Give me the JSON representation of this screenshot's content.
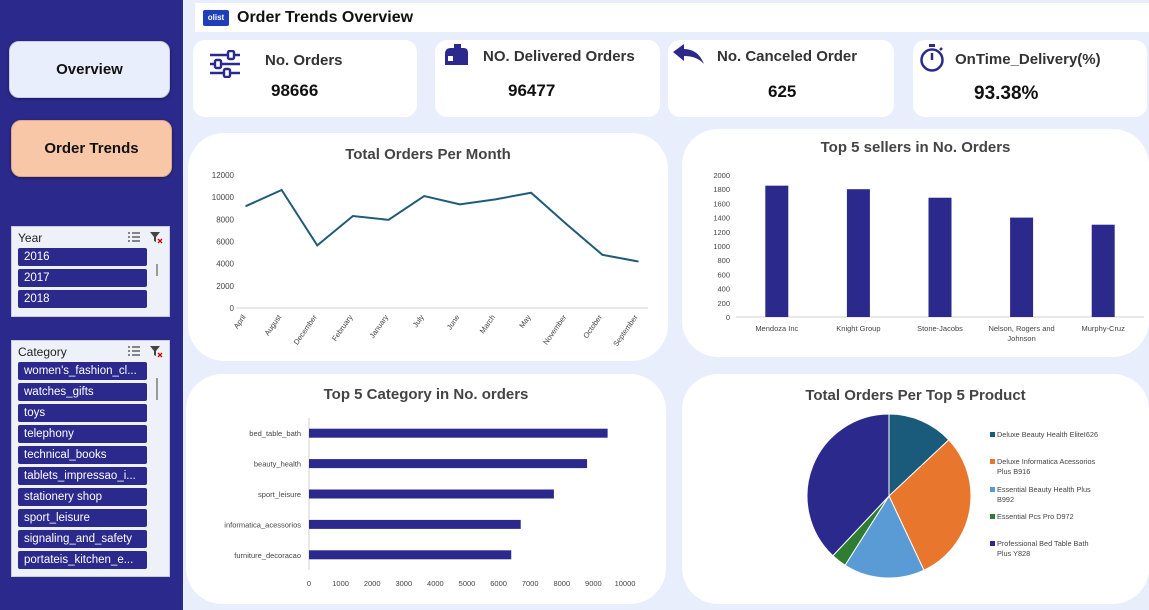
{
  "header": {
    "logo_text": "olist",
    "title": "Order Trends Overview"
  },
  "nav": {
    "overview": "Overview",
    "order_trends": "Order Trends"
  },
  "slicers": {
    "year": {
      "title": "Year",
      "items": [
        "2016",
        "2017",
        "2018"
      ]
    },
    "category": {
      "title": "Category",
      "items": [
        "women's_fashion_cl...",
        "watches_gifts",
        "toys",
        "telephony",
        "technical_books",
        "tablets_impressao_i...",
        "stationery shop",
        "sport_leisure",
        "signaling_and_safety",
        "portateis_kitchen_e..."
      ]
    }
  },
  "kpis": {
    "orders": {
      "label": "No. Orders",
      "value": "98666"
    },
    "delivered": {
      "label": "NO. Delivered Orders",
      "value": "96477"
    },
    "canceled": {
      "label": "No. Canceled Order",
      "value": "625"
    },
    "ontime": {
      "label": "OnTime_Delivery(%)",
      "value": "93.38%"
    }
  },
  "colors": {
    "navy": "#2b2a8c",
    "line": "#1f5c7a",
    "pie": [
      "#1a5a7a",
      "#e8762d",
      "#5b9bd5",
      "#2e7d32",
      "#2b2a8c"
    ]
  },
  "chart_data": [
    {
      "type": "line",
      "title": "Total Orders Per Month",
      "categories": [
        "April",
        "August",
        "December",
        "February",
        "January",
        "July",
        "June",
        "March",
        "May",
        "November",
        "October",
        "September"
      ],
      "values": [
        9200,
        10650,
        5650,
        8300,
        7950,
        10100,
        9350,
        9800,
        10400,
        7550,
        4800,
        4200
      ],
      "yticks": [
        "0",
        "2000",
        "4000",
        "6000",
        "8000",
        "10000",
        "12000"
      ],
      "ylim": [
        0,
        12000
      ]
    },
    {
      "type": "bar",
      "title": "Top 5 sellers in No. Orders",
      "categories": [
        "Mendoza Inc",
        "Knight Group",
        "Stone-Jacobs",
        "Nelson, Rogers and Johnson",
        "Murphy-Cruz"
      ],
      "values": [
        1850,
        1800,
        1680,
        1400,
        1300
      ],
      "yticks": [
        "0",
        "200",
        "400",
        "600",
        "800",
        "1000",
        "1200",
        "1400",
        "1600",
        "1800",
        "2000"
      ],
      "ylim": [
        0,
        2000
      ]
    },
    {
      "type": "bar",
      "orientation": "horizontal",
      "title": "Top 5 Category in No. orders",
      "categories": [
        "bed_table_bath",
        "beauty_health",
        "sport_leisure",
        "informatica_acessorios",
        "furniture_decoracao"
      ],
      "values": [
        9450,
        8800,
        7750,
        6700,
        6400
      ],
      "xticks": [
        "0",
        "1000",
        "2000",
        "3000",
        "4000",
        "5000",
        "6000",
        "7000",
        "8000",
        "9000",
        "10000"
      ],
      "xlim": [
        0,
        10000
      ]
    },
    {
      "type": "pie",
      "title": "Total Orders Per Top 5 Product",
      "labels": [
        "Deluxe Beauty Health EliteI626",
        "Deluxe Informatica Acessorios Plus B916",
        "Essential Beauty Health Plus B992",
        "Essential Pcs Pro D972",
        "Professional Bed Table Bath Plus Y828"
      ],
      "values": [
        13,
        30,
        16,
        3,
        38
      ]
    }
  ]
}
